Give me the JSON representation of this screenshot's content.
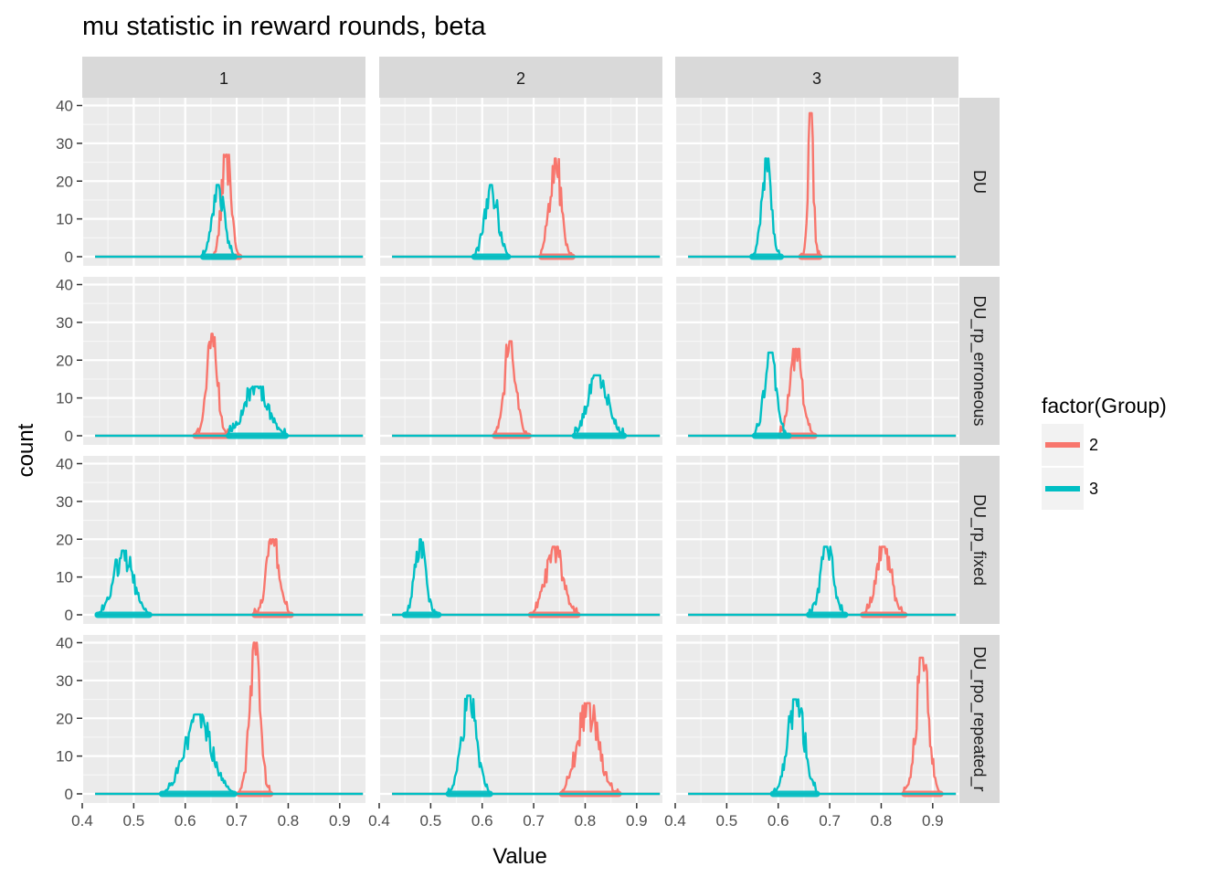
{
  "chart_data": {
    "type": "line",
    "subtype": "frequency polygon (histogram outline) faceted grid",
    "title": "mu statistic in reward rounds, beta",
    "xlabel": "Value",
    "ylabel": "count",
    "xlim": [
      0.4,
      0.95
    ],
    "ylim": [
      0,
      40
    ],
    "x_ticks": [
      "0.4",
      "0.5",
      "0.6",
      "0.7",
      "0.8",
      "0.9"
    ],
    "y_ticks": [
      "0",
      "10",
      "20",
      "30",
      "40"
    ],
    "grid": true,
    "legend": {
      "title": "factor(Group)",
      "position": "right"
    },
    "columns": [
      "1",
      "2",
      "3"
    ],
    "rows": [
      "DU",
      "DU_rp_erroneous",
      "DU_rp_fixed",
      "DU_rpo_repeated_r"
    ],
    "series": [
      {
        "name": "2",
        "color": "#F8766D"
      },
      {
        "name": "3",
        "color": "#00BFC4"
      }
    ],
    "baseline_range": [
      0.425,
      0.945
    ],
    "peaks": [
      {
        "row": 0,
        "col": 0,
        "group": "2",
        "center": 0.68,
        "sd": 0.009,
        "peak": 27,
        "lo": 0.655,
        "hi": 0.705
      },
      {
        "row": 0,
        "col": 0,
        "group": "3",
        "center": 0.665,
        "sd": 0.011,
        "peak": 19,
        "lo": 0.635,
        "hi": 0.695
      },
      {
        "row": 0,
        "col": 1,
        "group": "2",
        "center": 0.742,
        "sd": 0.011,
        "peak": 26,
        "lo": 0.715,
        "hi": 0.775
      },
      {
        "row": 0,
        "col": 1,
        "group": "3",
        "center": 0.618,
        "sd": 0.012,
        "peak": 19,
        "lo": 0.585,
        "hi": 0.65
      },
      {
        "row": 0,
        "col": 2,
        "group": "2",
        "center": 0.663,
        "sd": 0.005,
        "peak": 38,
        "lo": 0.645,
        "hi": 0.68
      },
      {
        "row": 0,
        "col": 2,
        "group": "3",
        "center": 0.577,
        "sd": 0.009,
        "peak": 26,
        "lo": 0.55,
        "hi": 0.605
      },
      {
        "row": 1,
        "col": 0,
        "group": "2",
        "center": 0.652,
        "sd": 0.01,
        "peak": 27,
        "lo": 0.62,
        "hi": 0.685
      },
      {
        "row": 1,
        "col": 0,
        "group": "3",
        "center": 0.738,
        "sd": 0.022,
        "peak": 13,
        "lo": 0.685,
        "hi": 0.795
      },
      {
        "row": 1,
        "col": 1,
        "group": "2",
        "center": 0.655,
        "sd": 0.011,
        "peak": 25,
        "lo": 0.625,
        "hi": 0.69
      },
      {
        "row": 1,
        "col": 1,
        "group": "3",
        "center": 0.825,
        "sd": 0.018,
        "peak": 16,
        "lo": 0.78,
        "hi": 0.875
      },
      {
        "row": 1,
        "col": 2,
        "group": "2",
        "center": 0.635,
        "sd": 0.012,
        "peak": 23,
        "lo": 0.605,
        "hi": 0.67
      },
      {
        "row": 1,
        "col": 2,
        "group": "3",
        "center": 0.585,
        "sd": 0.011,
        "peak": 22,
        "lo": 0.555,
        "hi": 0.62
      },
      {
        "row": 2,
        "col": 0,
        "group": "2",
        "center": 0.77,
        "sd": 0.012,
        "peak": 20,
        "lo": 0.735,
        "hi": 0.805
      },
      {
        "row": 2,
        "col": 0,
        "group": "3",
        "center": 0.48,
        "sd": 0.018,
        "peak": 17,
        "lo": 0.43,
        "hi": 0.53
      },
      {
        "row": 2,
        "col": 1,
        "group": "2",
        "center": 0.74,
        "sd": 0.016,
        "peak": 18,
        "lo": 0.695,
        "hi": 0.785
      },
      {
        "row": 2,
        "col": 1,
        "group": "3",
        "center": 0.48,
        "sd": 0.01,
        "peak": 20,
        "lo": 0.45,
        "hi": 0.515
      },
      {
        "row": 2,
        "col": 2,
        "group": "2",
        "center": 0.805,
        "sd": 0.014,
        "peak": 18,
        "lo": 0.765,
        "hi": 0.845
      },
      {
        "row": 2,
        "col": 2,
        "group": "3",
        "center": 0.695,
        "sd": 0.012,
        "peak": 18,
        "lo": 0.66,
        "hi": 0.73
      },
      {
        "row": 3,
        "col": 0,
        "group": "2",
        "center": 0.735,
        "sd": 0.01,
        "peak": 40,
        "lo": 0.705,
        "hi": 0.765
      },
      {
        "row": 3,
        "col": 0,
        "group": "3",
        "center": 0.625,
        "sd": 0.025,
        "peak": 21,
        "lo": 0.555,
        "hi": 0.695
      },
      {
        "row": 3,
        "col": 1,
        "group": "2",
        "center": 0.805,
        "sd": 0.019,
        "peak": 24,
        "lo": 0.755,
        "hi": 0.865
      },
      {
        "row": 3,
        "col": 1,
        "group": "3",
        "center": 0.575,
        "sd": 0.014,
        "peak": 26,
        "lo": 0.535,
        "hi": 0.615
      },
      {
        "row": 3,
        "col": 2,
        "group": "2",
        "center": 0.88,
        "sd": 0.012,
        "peak": 36,
        "lo": 0.845,
        "hi": 0.915
      },
      {
        "row": 3,
        "col": 2,
        "group": "3",
        "center": 0.635,
        "sd": 0.015,
        "peak": 25,
        "lo": 0.59,
        "hi": 0.675
      }
    ]
  }
}
